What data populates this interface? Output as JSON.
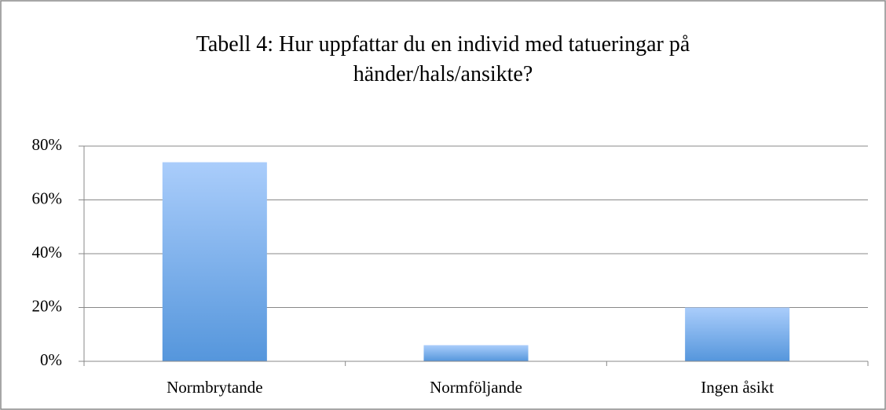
{
  "chart_data": {
    "type": "bar",
    "title": "Tabell 4: Hur uppfattar du en individ med tatueringar på händer/hals/ansikte?",
    "categories": [
      "Normbrytande",
      "Normföljande",
      "Ingen åsikt"
    ],
    "values": [
      74,
      6,
      20
    ],
    "color": "#5596dc",
    "ylim": [
      0,
      80
    ],
    "yticks": [
      {
        "value": 0,
        "label": "0%"
      },
      {
        "value": 20,
        "label": "20%"
      },
      {
        "value": 40,
        "label": "40%"
      },
      {
        "value": 60,
        "label": "60%"
      },
      {
        "value": 80,
        "label": "80%"
      }
    ],
    "grid": true
  }
}
